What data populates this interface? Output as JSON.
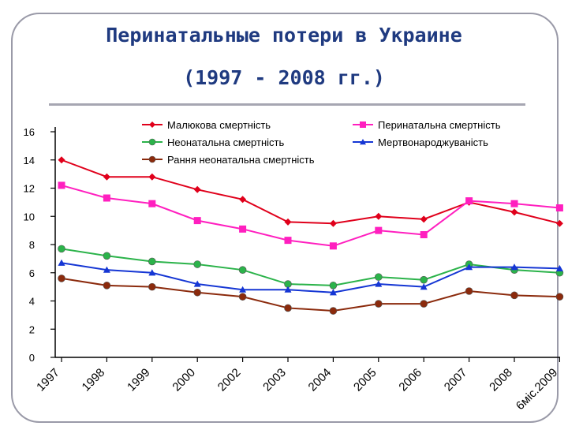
{
  "title_line1": "Перинатальные потери в Украине",
  "title_line2": "(1997 - 2008 гг.)",
  "chart_data": {
    "type": "line",
    "categories": [
      "1997",
      "1998",
      "1999",
      "2000",
      "2002",
      "2003",
      "2004",
      "2005",
      "2006",
      "2007",
      "2008",
      "6міс.2009"
    ],
    "ylim": [
      0,
      16
    ],
    "yticks": [
      0,
      2,
      4,
      6,
      8,
      10,
      12,
      14,
      16
    ],
    "legend_position": "top",
    "series": [
      {
        "name": "Малюкова смертність",
        "color": "#e0001b",
        "marker": "diamond",
        "values": [
          14.0,
          12.8,
          12.8,
          11.9,
          11.2,
          9.6,
          9.5,
          10.0,
          9.8,
          11.0,
          10.3,
          9.5
        ]
      },
      {
        "name": "Перинатальна смертність",
        "color": "#ff1fbf",
        "marker": "square",
        "values": [
          12.2,
          11.3,
          10.9,
          9.7,
          9.1,
          8.3,
          7.9,
          9.0,
          8.7,
          11.1,
          10.9,
          10.6
        ]
      },
      {
        "name": "Неонатальна смертність",
        "color": "#2bb34a",
        "marker": "circle",
        "values": [
          7.7,
          7.2,
          6.8,
          6.6,
          6.2,
          5.2,
          5.1,
          5.7,
          5.5,
          6.6,
          6.2,
          6.0
        ]
      },
      {
        "name": "Мертвонароджуваність",
        "color": "#1536d4",
        "marker": "triangle",
        "values": [
          6.7,
          6.2,
          6.0,
          5.2,
          4.8,
          4.8,
          4.6,
          5.2,
          5.0,
          6.4,
          6.4,
          6.3
        ]
      },
      {
        "name": "Рання неонатальна смертність",
        "color": "#8b2a0c",
        "marker": "circle",
        "values": [
          5.6,
          5.1,
          5.0,
          4.6,
          4.3,
          3.5,
          3.3,
          3.8,
          3.8,
          4.7,
          4.4,
          4.3
        ]
      }
    ]
  }
}
